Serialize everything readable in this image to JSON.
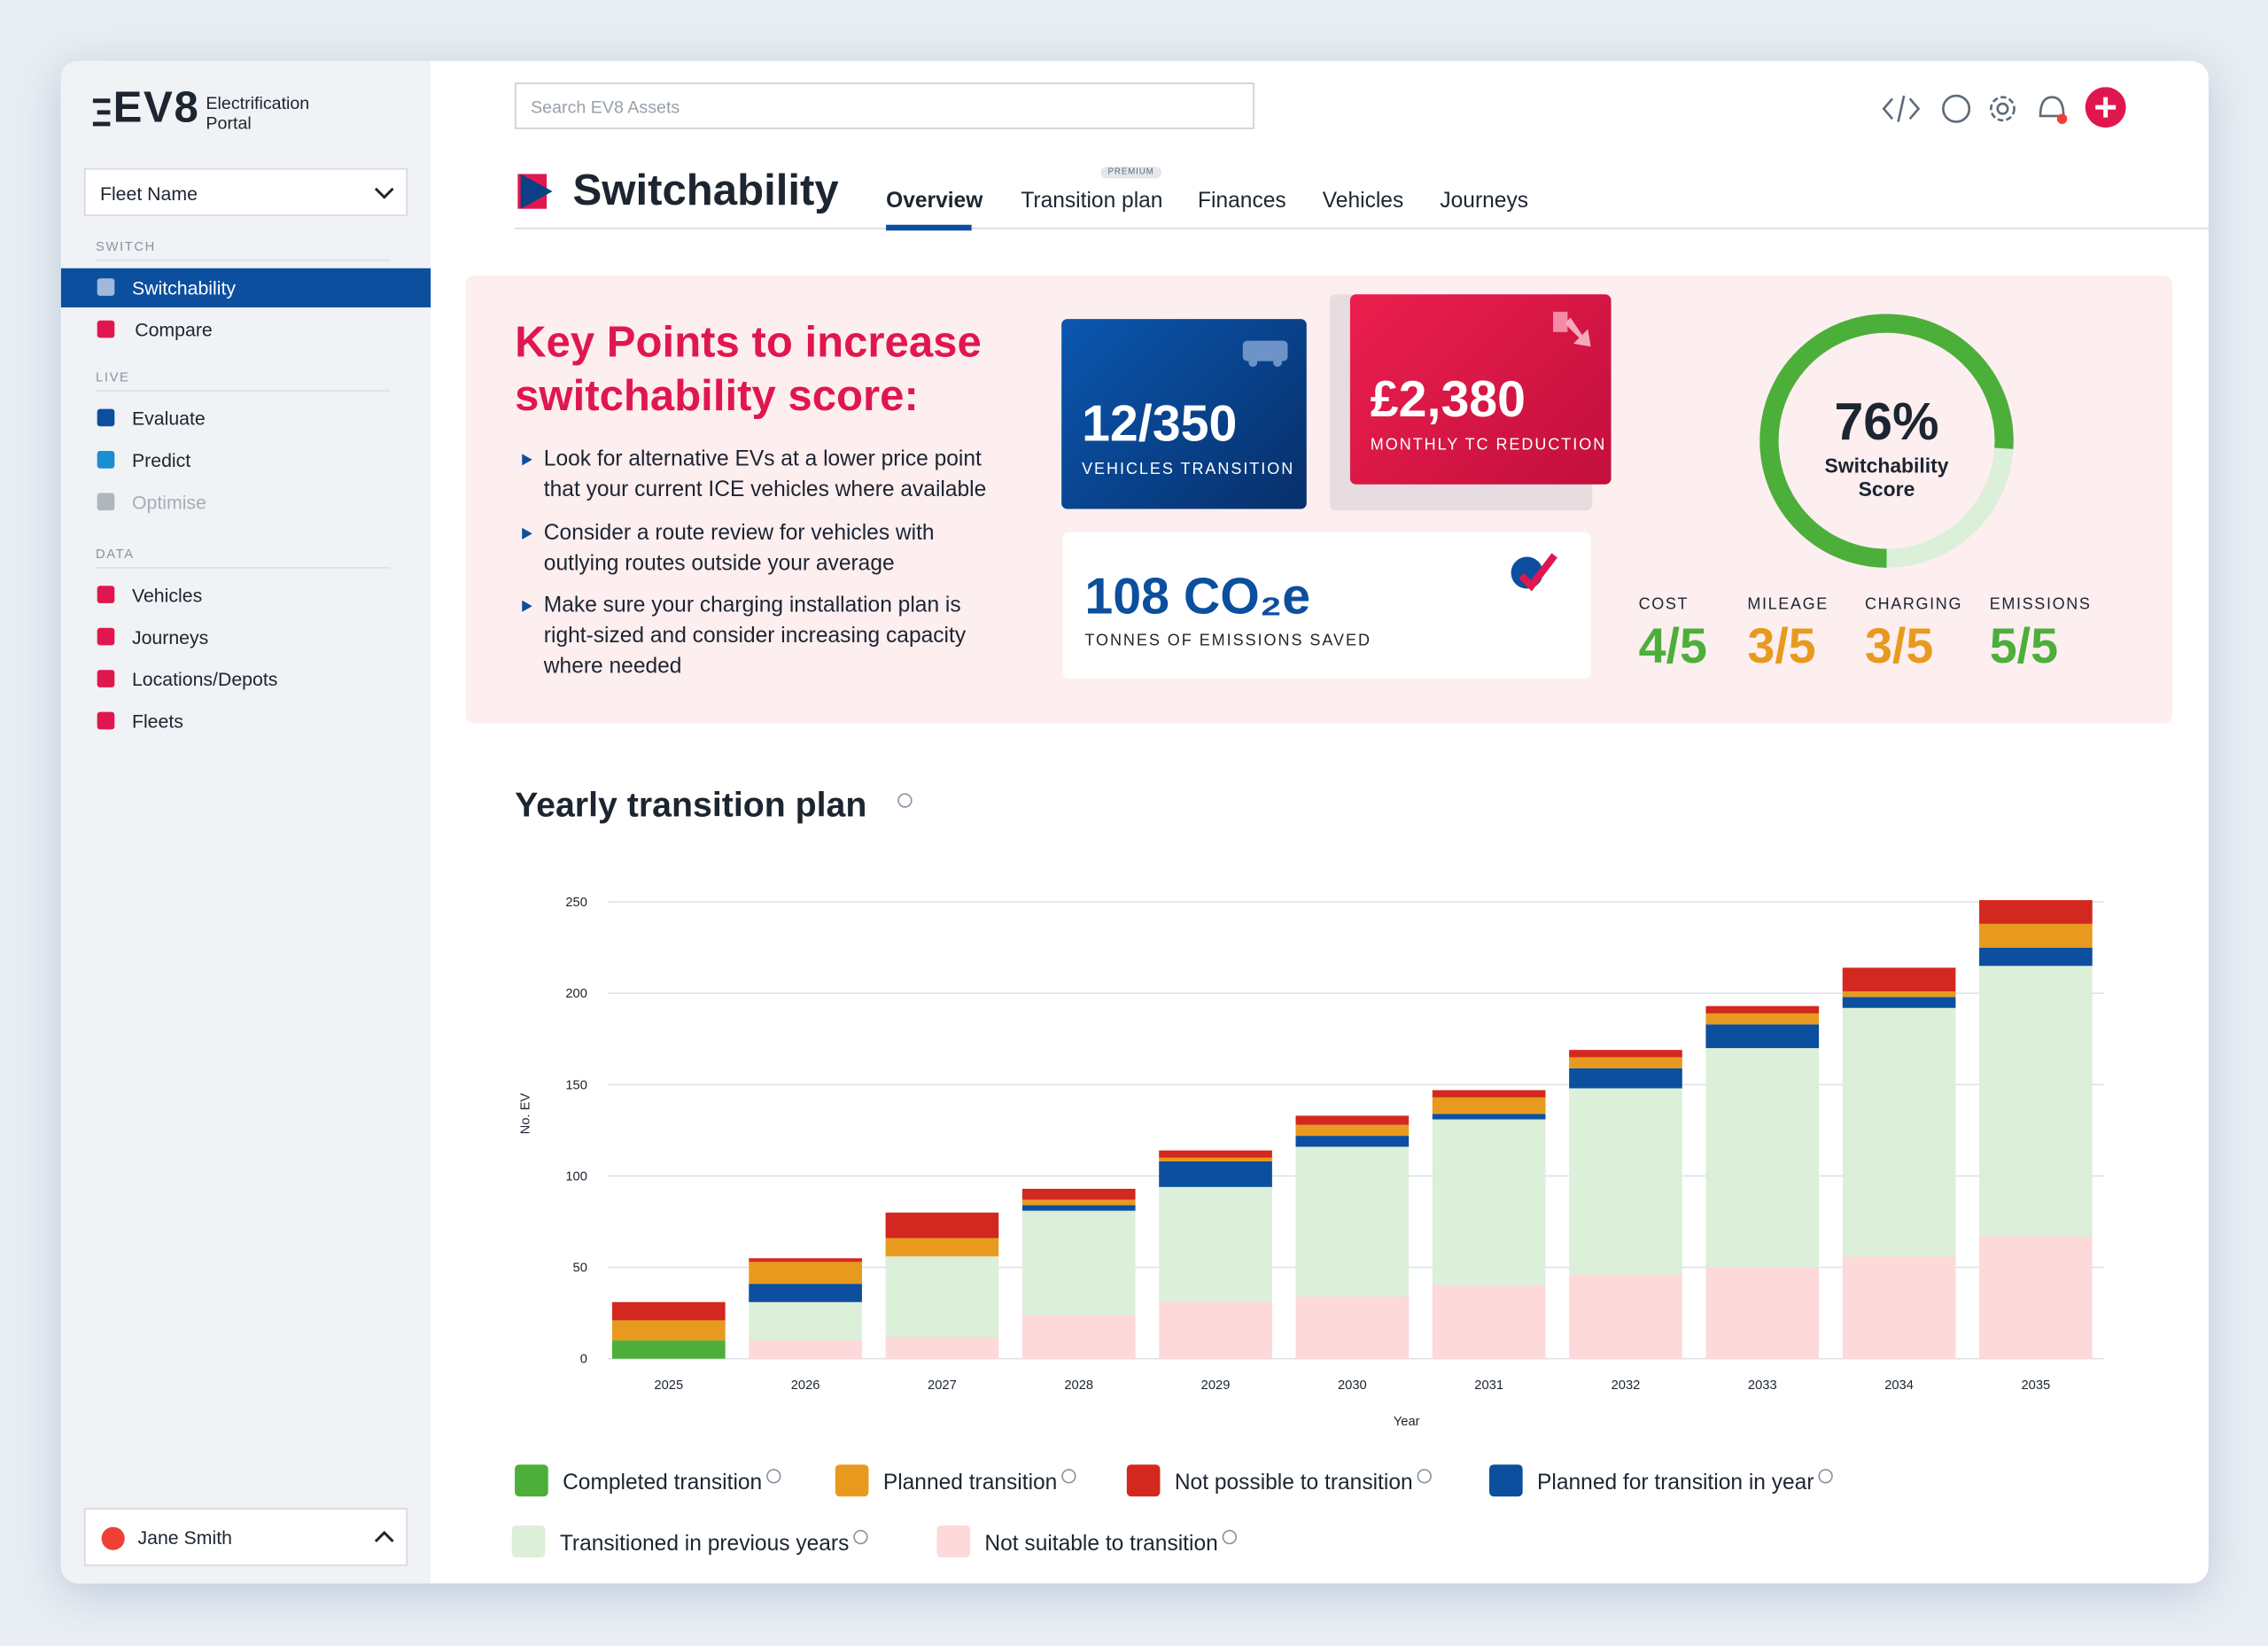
{
  "sidebar": {
    "brand": "EV8",
    "brand_subtitle": "Electrification Portal",
    "fleet_select": "Fleet Name",
    "sections": [
      {
        "label": "SWITCH",
        "items": [
          "Switchability",
          "Compare"
        ]
      },
      {
        "label": "LIVE",
        "items": [
          "Evaluate",
          "Predict",
          "Optimise"
        ]
      },
      {
        "label": "DATA",
        "items": [
          "Vehicles",
          "Journeys",
          "Locations/Depots",
          "Fleets"
        ]
      }
    ],
    "user": "Jane Smith"
  },
  "header": {
    "search_placeholder": "Search EV8 Assets",
    "title": "Switchability",
    "tabs": [
      "Overview",
      "Transition plan",
      "Finances",
      "Vehicles",
      "Journeys"
    ],
    "tab_badge": "PREMIUM"
  },
  "key_points": {
    "heading": "Key Points to increase switchability score:",
    "bullets": [
      "Look for alternative EVs at a lower price point that your current ICE vehicles where available",
      "Consider a route review for vehicles with outlying routes outside your average",
      "Make sure your charging installation plan is right-sized and consider increasing capacity where needed"
    ]
  },
  "stats": [
    {
      "value": "12/350",
      "label": "VEHICLES TRANSITION"
    },
    {
      "value": "£2,380",
      "label": "MONTHLY TC REDUCTION"
    },
    {
      "value": "108 CO₂e",
      "label": "TONNES OF EMISSIONS SAVED"
    }
  ],
  "score": {
    "value": 76,
    "value_label": "76%",
    "label": "Switchability Score",
    "subscores": [
      {
        "label": "COST",
        "value": "4/5",
        "color": "#4caf3a"
      },
      {
        "label": "MILEAGE",
        "value": "3/5",
        "color": "#e89a1e"
      },
      {
        "label": "CHARGING",
        "value": "3/5",
        "color": "#e89a1e"
      },
      {
        "label": "EMISSIONS",
        "value": "5/5",
        "color": "#4caf3a"
      }
    ]
  },
  "chart_data": {
    "type": "stacked-bar",
    "title": "Yearly transition plan",
    "x_label": "Year",
    "y_label": "No. EV",
    "categories": [
      "2025",
      "2026",
      "2027",
      "2028",
      "2029",
      "2030",
      "2031",
      "2032",
      "2033",
      "2034",
      "2035"
    ],
    "series": [
      {
        "name": "Not suitable to transition",
        "color": "#fdd9d9",
        "values": [
          0,
          10,
          12,
          24,
          31,
          34,
          40,
          46,
          50,
          56,
          67
        ]
      },
      {
        "name": "Transitioned in previous years",
        "color": "#dcefd8",
        "values": [
          0,
          21,
          44,
          57,
          63,
          82,
          91,
          102,
          120,
          136,
          148
        ]
      },
      {
        "name": "Planned for transition in year",
        "color": "#0b4f9e",
        "values": [
          0,
          10,
          0,
          3,
          14,
          6,
          3,
          11,
          13,
          6,
          10
        ]
      },
      {
        "name": "Completed transition",
        "color": "#4caf3a",
        "values": [
          10,
          0,
          0,
          0,
          0,
          0,
          0,
          0,
          0,
          0,
          0
        ]
      },
      {
        "name": "Planned transition",
        "color": "#e89a1e",
        "values": [
          11,
          12,
          10,
          3,
          2,
          6,
          9,
          6,
          6,
          3,
          13
        ]
      },
      {
        "name": "Not possible to transition",
        "color": "#d3281f",
        "values": [
          10,
          2,
          14,
          6,
          4,
          5,
          4,
          4,
          4,
          13,
          13
        ]
      }
    ],
    "ylim": [
      0,
      250
    ],
    "yticks": [
      0,
      50,
      100,
      150,
      200,
      250
    ],
    "grid": true
  }
}
